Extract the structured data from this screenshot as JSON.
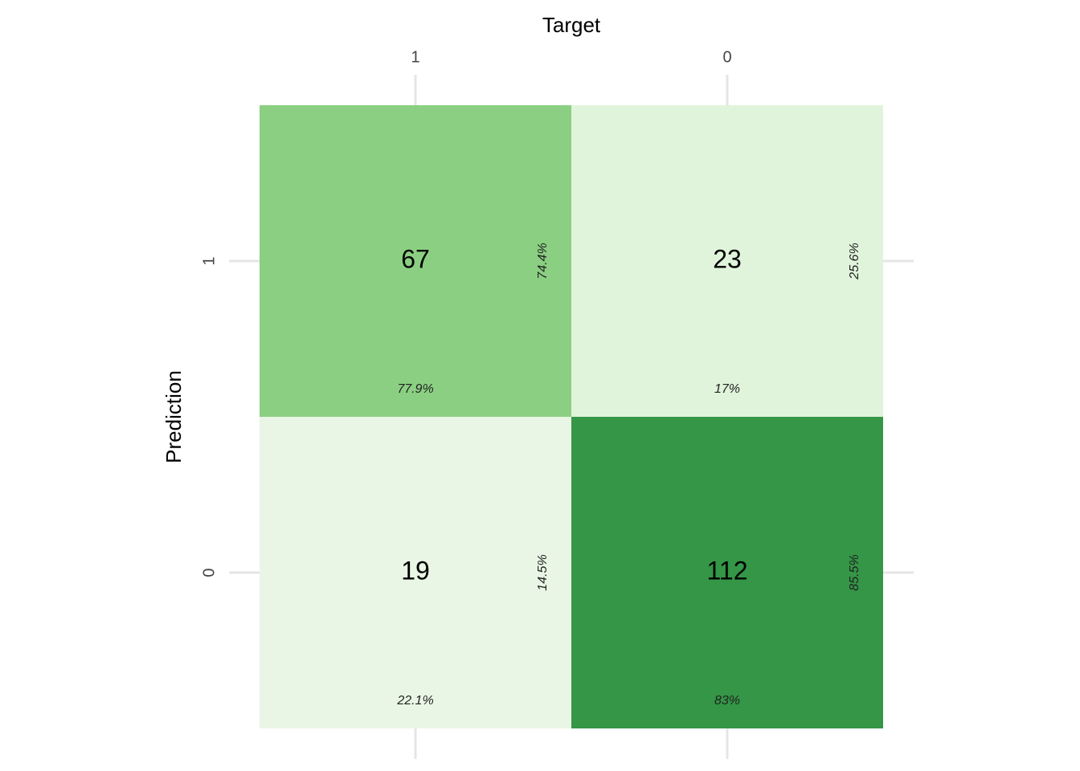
{
  "chart_data": {
    "type": "heatmap",
    "x_label": "Target",
    "y_label": "Prediction",
    "x_categories": [
      "1",
      "0"
    ],
    "y_categories": [
      "1",
      "0"
    ],
    "values": [
      [
        67,
        23
      ],
      [
        19,
        112
      ]
    ],
    "colors": [
      [
        "#8bd082",
        "#e0f4db"
      ],
      [
        "#e9f6e5",
        "#349646"
      ]
    ],
    "row_percents": {
      "values": [
        [
          74.4,
          25.6
        ],
        [
          14.5,
          85.5
        ]
      ],
      "value_labels": [
        [
          "74.4%",
          "25.6%"
        ],
        [
          "14.5%",
          "85.5%"
        ]
      ]
    },
    "col_percents": {
      "values": [
        [
          77.9,
          17
        ],
        [
          22.1,
          83
        ]
      ],
      "value_labels": [
        [
          "77.9%",
          "17%"
        ],
        [
          "22.1%",
          "83%"
        ]
      ]
    },
    "grid": true
  }
}
